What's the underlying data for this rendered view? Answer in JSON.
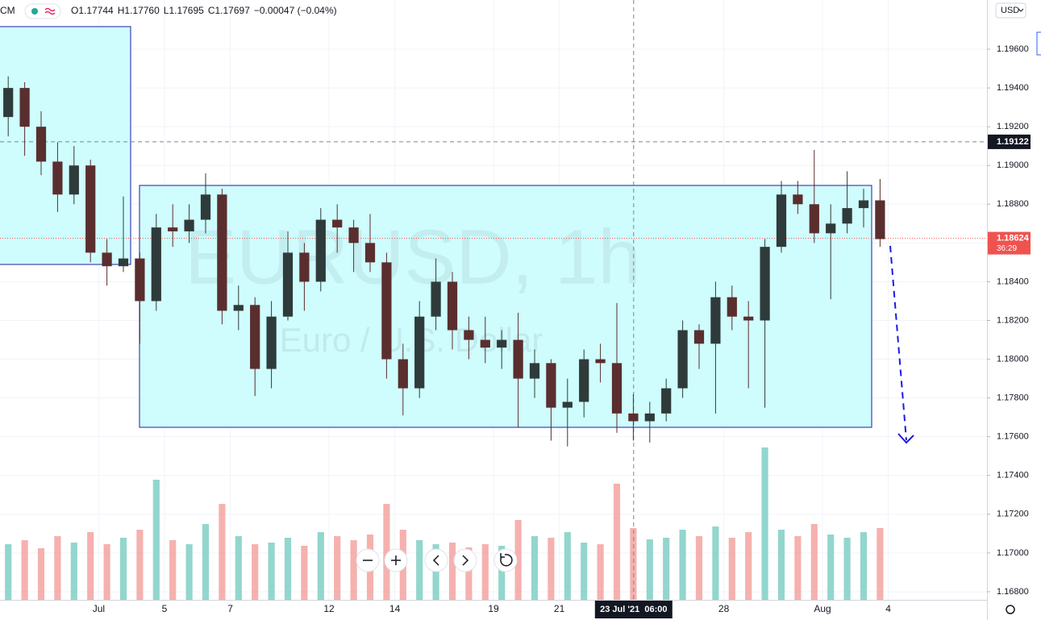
{
  "chart_data": {
    "type": "candlestick",
    "title": "EURUSD, 1h",
    "subtitle": "Euro / U.S. Dollar",
    "symbol_tail": "CM",
    "header": [
      "O1.17744",
      "H1.17760",
      "L1.17695",
      "C1.17697",
      "−0.00047 (−0.04%)"
    ],
    "currency": "USD",
    "up_color": "#2f3b3a",
    "down_color": "#5a2e2e",
    "volume_up_color": "#7fcfc4",
    "volume_down_color": "#f3a3a0",
    "x": [
      0.25,
      0.75,
      1.25,
      1.75,
      2.25,
      2.75,
      3.25,
      3.75,
      4.25,
      4.75,
      5.25,
      5.75,
      6.25,
      6.75,
      7.25,
      7.75,
      8.25,
      8.75,
      9.25,
      9.75,
      10.25,
      10.75,
      11.25,
      11.75,
      12.25,
      12.75,
      13.25,
      13.75,
      14.25,
      14.75,
      15.25,
      15.75,
      16.25,
      16.75,
      17.25,
      17.75,
      18.25,
      18.75,
      19.25,
      19.75,
      20.25,
      20.75,
      21.25,
      21.75,
      22.25,
      22.75,
      23.25,
      23.75,
      24.25,
      24.75,
      25.25,
      25.75,
      26.25,
      26.75
    ],
    "open": [
      1.1925,
      1.194,
      1.192,
      1.1902,
      1.1885,
      1.19,
      1.1855,
      1.1848,
      1.1852,
      1.183,
      1.1868,
      1.1866,
      1.1872,
      1.1885,
      1.1825,
      1.1828,
      1.1795,
      1.1822,
      1.1855,
      1.184,
      1.1872,
      1.1868,
      1.186,
      1.185,
      1.18,
      1.1785,
      1.1822,
      1.184,
      1.1815,
      1.181,
      1.1806,
      1.181,
      1.179,
      1.1798,
      1.1775,
      1.1778,
      1.18,
      1.1798,
      1.1772,
      1.1768,
      1.1772,
      1.1785,
      1.1815,
      1.1808,
      1.1832,
      1.1822,
      1.182,
      1.1858,
      1.1885,
      1.188,
      1.1865,
      1.187,
      1.1878,
      1.1882
    ],
    "high": [
      1.1946,
      1.1943,
      1.1928,
      1.1912,
      1.191,
      1.1903,
      1.1862,
      1.1884,
      1.1855,
      1.1875,
      1.188,
      1.188,
      1.1896,
      1.1888,
      1.1838,
      1.1832,
      1.183,
      1.1866,
      1.186,
      1.1878,
      1.188,
      1.1872,
      1.1875,
      1.1855,
      1.1808,
      1.183,
      1.1852,
      1.1845,
      1.1822,
      1.1822,
      1.1815,
      1.1824,
      1.1805,
      1.18,
      1.179,
      1.1805,
      1.1808,
      1.1829,
      1.1782,
      1.1778,
      1.179,
      1.182,
      1.1818,
      1.184,
      1.1838,
      1.183,
      1.1862,
      1.1892,
      1.1892,
      1.1908,
      1.188,
      1.1897,
      1.1888,
      1.1893
    ],
    "low": [
      1.1915,
      1.1905,
      1.1895,
      1.1876,
      1.188,
      1.185,
      1.1838,
      1.1845,
      1.1808,
      1.1825,
      1.1858,
      1.186,
      1.1865,
      1.1818,
      1.1815,
      1.1781,
      1.1785,
      1.182,
      1.1825,
      1.1835,
      1.1855,
      1.1845,
      1.1845,
      1.179,
      1.1771,
      1.178,
      1.1815,
      1.1805,
      1.18,
      1.1798,
      1.1795,
      1.1765,
      1.178,
      1.1758,
      1.1755,
      1.177,
      1.1788,
      1.1762,
      1.1758,
      1.1757,
      1.1768,
      1.178,
      1.1795,
      1.1772,
      1.1815,
      1.1785,
      1.1775,
      1.1855,
      1.1875,
      1.186,
      1.1831,
      1.1865,
      1.1868,
      1.1858
    ],
    "close": [
      1.194,
      1.192,
      1.1902,
      1.1885,
      1.19,
      1.1855,
      1.1848,
      1.1852,
      1.183,
      1.1868,
      1.1866,
      1.1872,
      1.1885,
      1.1825,
      1.1828,
      1.1795,
      1.1822,
      1.1855,
      1.184,
      1.1872,
      1.1868,
      1.186,
      1.185,
      1.18,
      1.1785,
      1.1822,
      1.184,
      1.1815,
      1.181,
      1.1806,
      1.181,
      1.179,
      1.1798,
      1.1775,
      1.1778,
      1.18,
      1.1798,
      1.1772,
      1.1768,
      1.1772,
      1.1785,
      1.1815,
      1.1808,
      1.1832,
      1.1822,
      1.182,
      1.1858,
      1.1885,
      1.188,
      1.1865,
      1.187,
      1.1878,
      1.1882,
      1.1862
    ],
    "volume": [
      70,
      75,
      65,
      80,
      72,
      85,
      70,
      78,
      88,
      150,
      75,
      70,
      95,
      120,
      80,
      70,
      72,
      78,
      68,
      85,
      80,
      75,
      82,
      120,
      88,
      75,
      70,
      72,
      66,
      70,
      68,
      100,
      80,
      78,
      85,
      72,
      70,
      145,
      90,
      76,
      78,
      88,
      80,
      92,
      78,
      85,
      190,
      88,
      80,
      95,
      82,
      78,
      85,
      90
    ],
    "xlim": [
      0,
      30
    ],
    "xticks": [
      {
        "value": 3,
        "label": "Jul"
      },
      5,
      7,
      {
        "value": 10,
        "label": "12"
      },
      {
        "value": 12,
        "label": "14"
      },
      {
        "value": 15,
        "label": "19"
      },
      {
        "value": 17,
        "label": "21"
      },
      {
        "value": 22,
        "label": "28"
      },
      {
        "value": 25,
        "label": "Aug"
      },
      {
        "value": 27,
        "label": "4"
      }
    ],
    "ylim": [
      1.16754,
      1.19854
    ],
    "yticks": [
      {
        "value": 1.168,
        "label": "1.16800"
      },
      {
        "value": 1.17,
        "label": "1.17000"
      },
      {
        "value": 1.172,
        "label": "1.17200"
      },
      {
        "value": 1.174,
        "label": "1.17400"
      },
      {
        "value": 1.176,
        "label": "1.17600"
      },
      {
        "value": 1.178,
        "label": "1.17800"
      },
      {
        "value": 1.18,
        "label": "1.18000"
      },
      {
        "value": 1.182,
        "label": "1.18200"
      },
      {
        "value": 1.184,
        "label": "1.18400"
      },
      {
        "value": 1.186,
        "label": "1.18600"
      },
      {
        "value": 1.188,
        "label": "1.18800"
      },
      {
        "value": 1.19,
        "label": "1.19000"
      },
      {
        "value": 1.192,
        "label": "1.19200"
      },
      {
        "value": 1.194,
        "label": "1.19400"
      },
      {
        "value": 1.196,
        "label": "1.19600"
      }
    ],
    "grid": true,
    "crosshair": {
      "x": 19.26,
      "label": "23 Jul '21  06:00",
      "price": 1.19122
    },
    "last_price": 1.18624,
    "countdown": "36:29"
  }
}
